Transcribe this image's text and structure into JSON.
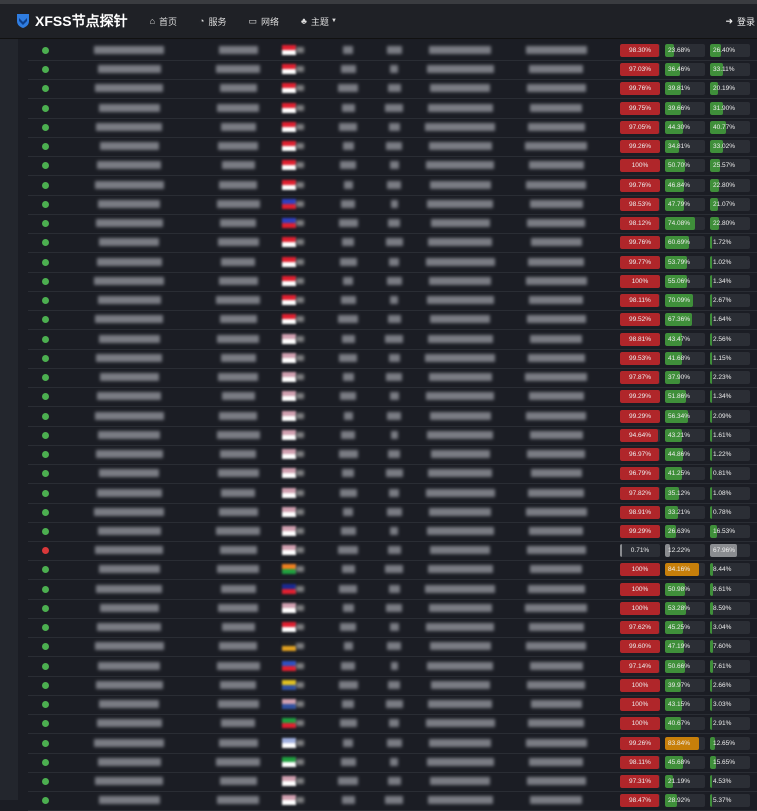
{
  "nav": {
    "brand": "XFSS节点探针",
    "items": [
      {
        "label": "首页",
        "icon": "home-icon"
      },
      {
        "label": "服务",
        "icon": "rss-icon"
      },
      {
        "label": "网络",
        "icon": "network-icon"
      },
      {
        "label": "主题",
        "icon": "theme-icon",
        "dropdown": true
      }
    ],
    "login": "登录"
  },
  "colors": {
    "online": "#4caf50",
    "offline": "#d9383a",
    "cpu": "#b0262a",
    "mem": "#3f8f3a",
    "warn": "#c77f0a",
    "inactive": "#8a8c90"
  },
  "rows": [
    {
      "online": true,
      "cpu": "98.30%",
      "mem": "23.68%",
      "disk": "26.40%",
      "flag": [
        "#e02030",
        "#fff"
      ]
    },
    {
      "online": true,
      "cpu": "97.03%",
      "mem": "36.46%",
      "disk": "33.11%",
      "flag": [
        "#e02030",
        "#fff"
      ]
    },
    {
      "online": true,
      "cpu": "99.76%",
      "mem": "39.81%",
      "disk": "20.19%",
      "flag": [
        "#e02030",
        "#fff"
      ]
    },
    {
      "online": true,
      "cpu": "99.75%",
      "mem": "39.66%",
      "disk": "31.90%",
      "flag": [
        "#e02030",
        "#fff"
      ]
    },
    {
      "online": true,
      "cpu": "97.05%",
      "mem": "44.30%",
      "disk": "40.77%",
      "flag": [
        "#e02030",
        "#fff"
      ]
    },
    {
      "online": true,
      "cpu": "99.26%",
      "mem": "34.81%",
      "disk": "33.02%",
      "flag": [
        "#e02030",
        "#fff"
      ]
    },
    {
      "online": true,
      "cpu": "100%",
      "mem": "50.70%",
      "disk": "25.57%",
      "flag": [
        "#e02030",
        "#fff"
      ]
    },
    {
      "online": true,
      "cpu": "99.76%",
      "mem": "46.84%",
      "disk": "22.80%",
      "flag": [
        "#e02030",
        "#fff"
      ]
    },
    {
      "online": true,
      "cpu": "98.53%",
      "mem": "47.79%",
      "disk": "21.07%",
      "flag": [
        "#3040c0",
        "#e02030"
      ]
    },
    {
      "online": true,
      "cpu": "98.12%",
      "mem": "74.08%",
      "disk": "22.80%",
      "flag": [
        "#3040c0",
        "#e02030"
      ]
    },
    {
      "online": true,
      "cpu": "99.76%",
      "mem": "60.69%",
      "disk": "1.72%",
      "flag": [
        "#e02030",
        "#fff"
      ]
    },
    {
      "online": true,
      "cpu": "99.77%",
      "mem": "53.79%",
      "disk": "1.02%",
      "flag": [
        "#e02030",
        "#fff"
      ]
    },
    {
      "online": true,
      "cpu": "100%",
      "mem": "55.06%",
      "disk": "1.34%",
      "flag": [
        "#e02030",
        "#fff"
      ]
    },
    {
      "online": true,
      "cpu": "98.11%",
      "mem": "70.09%",
      "disk": "2.67%",
      "flag": [
        "#e02030",
        "#fff"
      ]
    },
    {
      "online": true,
      "cpu": "99.52%",
      "mem": "67.36%",
      "disk": "1.64%",
      "flag": [
        "#e02030",
        "#fff"
      ]
    },
    {
      "online": true,
      "cpu": "98.81%",
      "mem": "43.47%",
      "disk": "2.56%",
      "flag": [
        "#d0a0b0",
        "#fff"
      ]
    },
    {
      "online": true,
      "cpu": "99.53%",
      "mem": "41.68%",
      "disk": "1.15%",
      "flag": [
        "#d0a0b0",
        "#fff"
      ]
    },
    {
      "online": true,
      "cpu": "97.87%",
      "mem": "37.90%",
      "disk": "2.23%",
      "flag": [
        "#d0a0b0",
        "#fff"
      ]
    },
    {
      "online": true,
      "cpu": "99.29%",
      "mem": "51.86%",
      "disk": "1.34%",
      "flag": [
        "#d0a0b0",
        "#fff"
      ]
    },
    {
      "online": true,
      "cpu": "99.29%",
      "mem": "56.34%",
      "disk": "2.09%",
      "flag": [
        "#d0a0b0",
        "#fff"
      ]
    },
    {
      "online": true,
      "cpu": "94.64%",
      "mem": "43.21%",
      "disk": "1.61%",
      "flag": [
        "#d0a0b0",
        "#fff"
      ]
    },
    {
      "online": true,
      "cpu": "96.97%",
      "mem": "44.86%",
      "disk": "1.22%",
      "flag": [
        "#d0a0b0",
        "#fff"
      ]
    },
    {
      "online": true,
      "cpu": "96.79%",
      "mem": "41.25%",
      "disk": "0.81%",
      "flag": [
        "#d0a0b0",
        "#fff"
      ]
    },
    {
      "online": true,
      "cpu": "97.82%",
      "mem": "35.12%",
      "disk": "1.08%",
      "flag": [
        "#d0a0b0",
        "#fff"
      ]
    },
    {
      "online": true,
      "cpu": "98.91%",
      "mem": "33.21%",
      "disk": "0.78%",
      "flag": [
        "#d0a0b0",
        "#fff"
      ]
    },
    {
      "online": true,
      "cpu": "99.29%",
      "mem": "26.63%",
      "disk": "16.53%",
      "flag": [
        "#d0a0b0",
        "#fff"
      ]
    },
    {
      "online": false,
      "cpu": "0.71%",
      "mem": "12.22%",
      "disk": "67.96%",
      "flag": [
        "#d0a0b0",
        "#fff"
      ]
    },
    {
      "online": true,
      "cpu": "100%",
      "mem": "84.16%",
      "disk": "8.44%",
      "flag": [
        "#f08020",
        "#20a040"
      ]
    },
    {
      "online": true,
      "cpu": "100%",
      "mem": "50.98%",
      "disk": "8.61%",
      "flag": [
        "#1a2a90",
        "#e02030"
      ]
    },
    {
      "online": true,
      "cpu": "100%",
      "mem": "53.28%",
      "disk": "8.59%",
      "flag": [
        "#d0a0b0",
        "#fff"
      ]
    },
    {
      "online": true,
      "cpu": "97.62%",
      "mem": "45.25%",
      "disk": "3.04%",
      "flag": [
        "#e02030",
        "#fff"
      ]
    },
    {
      "online": true,
      "cpu": "99.60%",
      "mem": "47.19%",
      "disk": "7.60%",
      "flag": [
        "#222",
        "#e0a020"
      ]
    },
    {
      "online": true,
      "cpu": "97.14%",
      "mem": "50.66%",
      "disk": "7.61%",
      "flag": [
        "#3050c0",
        "#e02030"
      ]
    },
    {
      "online": true,
      "cpu": "100%",
      "mem": "39.97%",
      "disk": "2.66%",
      "flag": [
        "#e0c020",
        "#3050a0"
      ]
    },
    {
      "online": true,
      "cpu": "100%",
      "mem": "43.15%",
      "disk": "3.03%",
      "flag": [
        "#d0a0b0",
        "#3050a0"
      ]
    },
    {
      "online": true,
      "cpu": "100%",
      "mem": "40.67%",
      "disk": "2.91%",
      "flag": [
        "#20a040",
        "#e02030"
      ]
    },
    {
      "online": true,
      "cpu": "99.26%",
      "mem": "83.84%",
      "disk": "12.65%",
      "flag": [
        "#a0b0e0",
        "#fff"
      ]
    },
    {
      "online": true,
      "cpu": "98.11%",
      "mem": "45.68%",
      "disk": "15.65%",
      "flag": [
        "#20a040",
        "#fff"
      ]
    },
    {
      "online": true,
      "cpu": "97.31%",
      "mem": "21.19%",
      "disk": "4.53%",
      "flag": [
        "#d0a0b0",
        "#fff"
      ]
    },
    {
      "online": true,
      "cpu": "98.47%",
      "mem": "28.92%",
      "disk": "5.37%",
      "flag": [
        "#d0a0b0",
        "#fff"
      ]
    }
  ]
}
